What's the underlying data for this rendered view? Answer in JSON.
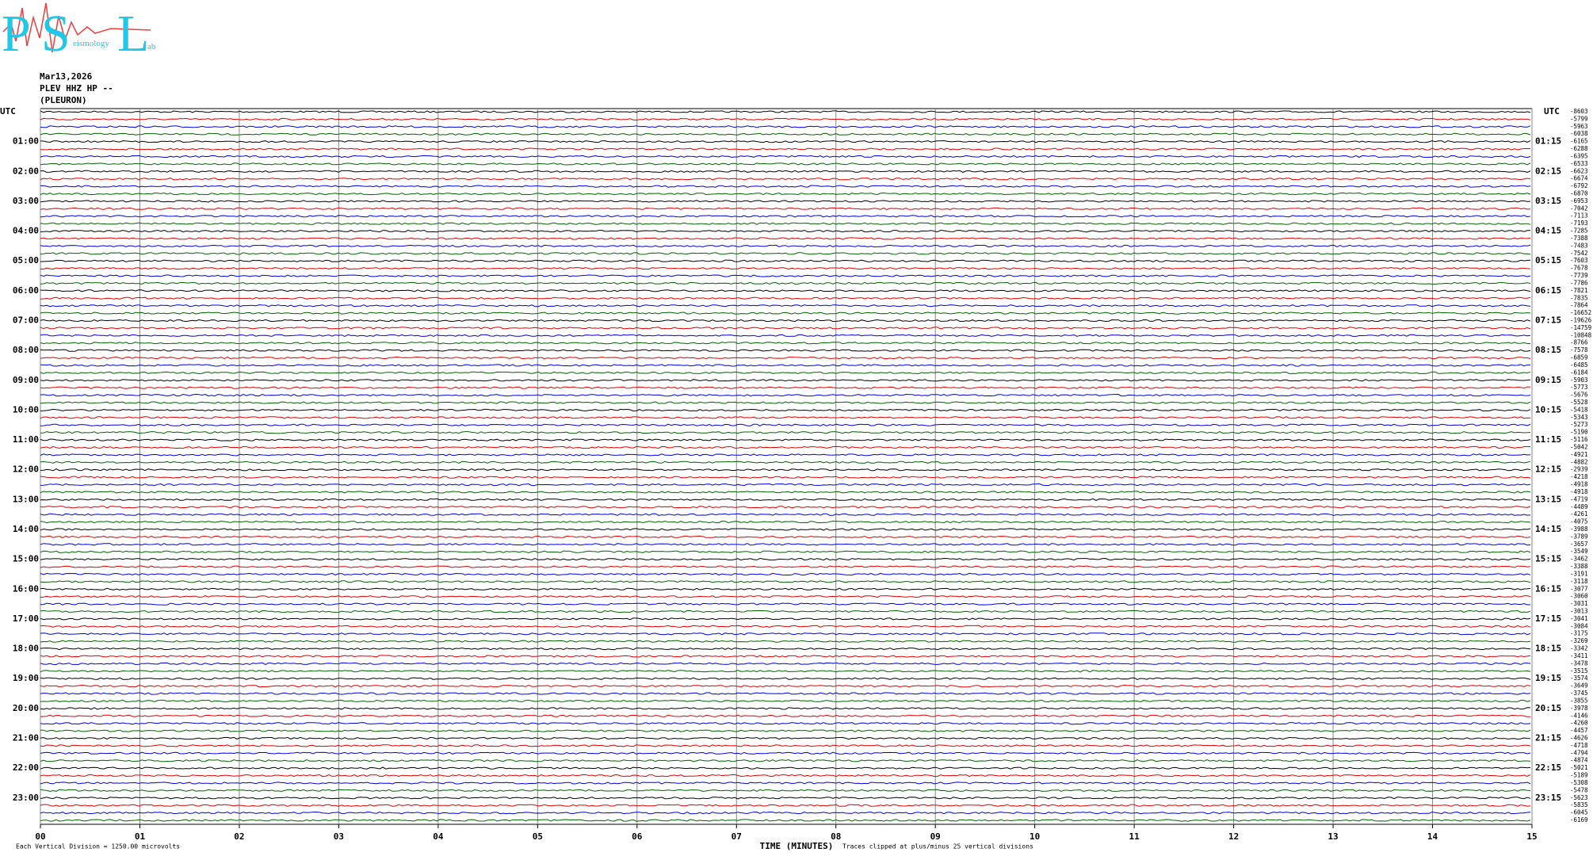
{
  "header": {
    "logo": {
      "letters": [
        "P",
        "S",
        "L"
      ],
      "words": [
        "eismology",
        "ab"
      ]
    },
    "date": "Mar13,2026",
    "station": "PLEV HHZ HP --",
    "location": "(PLEURON)"
  },
  "plot": {
    "left_labels": [
      "UTC",
      "01:00",
      "02:00",
      "03:00",
      "04:00",
      "05:00",
      "06:00",
      "07:00",
      "08:00",
      "09:00",
      "10:00",
      "11:00",
      "12:00",
      "13:00",
      "14:00",
      "15:00",
      "16:00",
      "17:00",
      "18:00",
      "19:00",
      "20:00",
      "21:00",
      "22:00",
      "23:00"
    ],
    "right_labels": [
      "UTC",
      "01:15",
      "02:15",
      "03:15",
      "04:15",
      "05:15",
      "06:15",
      "07:15",
      "08:15",
      "09:15",
      "10:15",
      "11:15",
      "12:15",
      "13:15",
      "14:15",
      "15:15",
      "16:15",
      "17:15",
      "18:15",
      "19:15",
      "20:15",
      "21:15",
      "22:15",
      "23:15"
    ],
    "offsets": [
      -8603,
      -5799,
      -5963,
      -6038,
      -6165,
      -6288,
      -6395,
      -6533,
      -6623,
      -6674,
      -6792,
      -6870,
      -6953,
      -7042,
      -7113,
      -7193,
      -7285,
      -7388,
      -7483,
      -7542,
      -7603,
      -7678,
      -7739,
      -7786,
      -7821,
      -7835,
      -7864,
      -16652,
      -19626,
      -14759,
      -10848,
      -8766,
      -7578,
      -6859,
      -6485,
      -6184,
      -5903,
      -5773,
      -5676,
      -5528,
      -5418,
      -5343,
      -5273,
      -5190,
      -5116,
      -5042,
      -4921,
      -4882,
      -2939,
      -4218,
      -4918,
      -4918,
      -4719,
      -4489,
      -4261,
      -4075,
      -3988,
      -3789,
      -3657,
      -3549,
      -3462,
      -3388,
      -3191,
      -3118,
      -3077,
      -3060,
      -3031,
      -3013,
      -3041,
      -3084,
      -3175,
      -3269,
      -3342,
      -3411,
      -3478,
      -3515,
      -3574,
      -3649,
      -3745,
      -3855,
      -3978,
      -4146,
      -4260,
      -4457,
      -4626,
      -4718,
      -4794,
      -4874,
      -5021,
      -5189,
      -5308,
      -5478,
      -5623,
      -5835,
      -6045,
      -6169
    ],
    "minutes": [
      "00",
      "01",
      "02",
      "03",
      "04",
      "05",
      "06",
      "07",
      "08",
      "09",
      "10",
      "11",
      "12",
      "13",
      "14",
      "15"
    ],
    "x_label": "TIME (MINUTES)",
    "notes": [
      "Each Vertical Division = 1250.00 microvolts",
      "Traces clipped at plus/minus 25 vertical divisions"
    ]
  }
}
